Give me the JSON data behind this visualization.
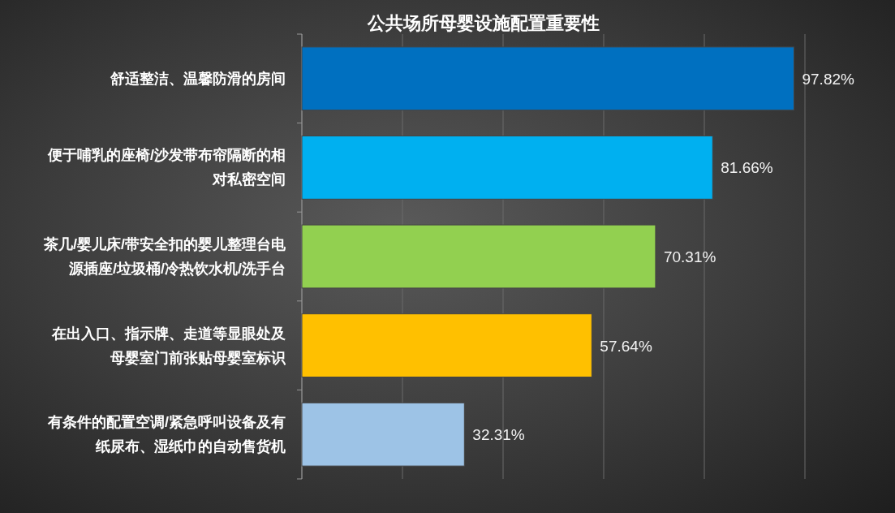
{
  "chart_data": {
    "type": "bar",
    "orientation": "horizontal",
    "title": "公共场所母婴设施配置重要性",
    "categories": [
      "舒适整洁、温馨防滑的房间",
      "便于哺乳的座椅/沙发带布帘隔断的相对私密空间",
      "茶几/婴儿床/带安全扣的婴儿整理台电源插座/垃圾桶/冷热饮水机/洗手台",
      "在出入口、指示牌、走道等显眼处及母婴室门前张贴母婴室标识",
      "有条件的配置空调/紧急呼叫设备及有纸尿布、湿纸巾的自动售货机"
    ],
    "values": [
      97.82,
      81.66,
      70.31,
      57.64,
      32.31
    ],
    "colors": [
      "#0070c0",
      "#00b0f0",
      "#92d050",
      "#ffc000",
      "#9dc3e6"
    ],
    "value_labels": [
      "97.82%",
      "81.66%",
      "70.31%",
      "57.64%",
      "32.31%"
    ],
    "xlim": [
      0,
      100
    ],
    "xticks": [
      {
        "value": 0,
        "label": null
      },
      {
        "value": 20,
        "label": null
      },
      {
        "value": 40,
        "label": null
      },
      {
        "value": 60,
        "label": null
      },
      {
        "value": 80,
        "label": null
      },
      {
        "value": 100,
        "label": null
      }
    ],
    "grid": "x",
    "tick_labels": "y"
  }
}
